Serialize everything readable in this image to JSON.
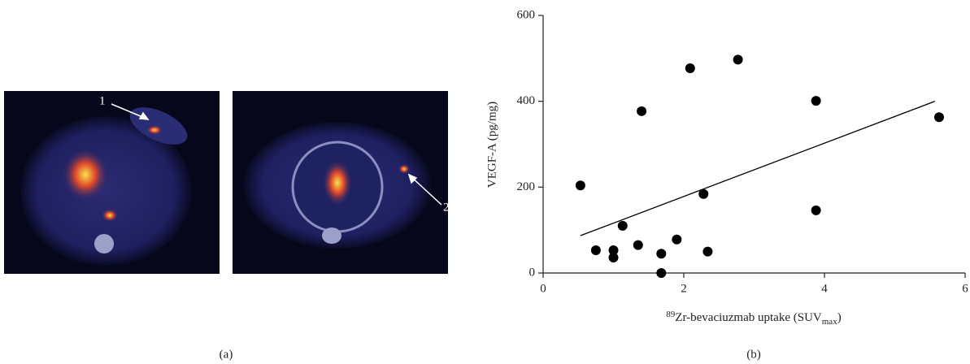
{
  "figure": {
    "panel_a": {
      "label": "(a)",
      "annotations": [
        "1",
        "2"
      ]
    },
    "panel_b_label": "(b)"
  },
  "chart_data": {
    "type": "scatter",
    "ylabel": "VEGF-A (pg/mg)",
    "xlabel": {
      "sup": "89",
      "text": "Zr-bevaciuzmab uptake (SUV",
      "sub": "max",
      "end": ")"
    },
    "xlim": [
      0,
      6
    ],
    "ylim": [
      0,
      600
    ],
    "xticks": [
      0,
      2,
      4,
      6
    ],
    "yticks": [
      0,
      200,
      400,
      600
    ],
    "series": [
      {
        "color": "#000000",
        "x": [
          0.53,
          0.75,
          1.0,
          1.0,
          1.13,
          1.35,
          1.4,
          1.68,
          1.68,
          1.9,
          2.09,
          2.28,
          2.34,
          2.77,
          3.88,
          3.88,
          5.63
        ],
        "values": [
          204,
          53,
          53,
          36,
          110,
          65,
          377,
          45,
          0,
          78,
          477,
          184,
          50,
          497,
          401,
          146,
          363
        ]
      },
      {
        "type": "line",
        "color": "#000000",
        "x": [
          0.53,
          5.57
        ],
        "values": [
          87,
          400
        ]
      }
    ]
  }
}
